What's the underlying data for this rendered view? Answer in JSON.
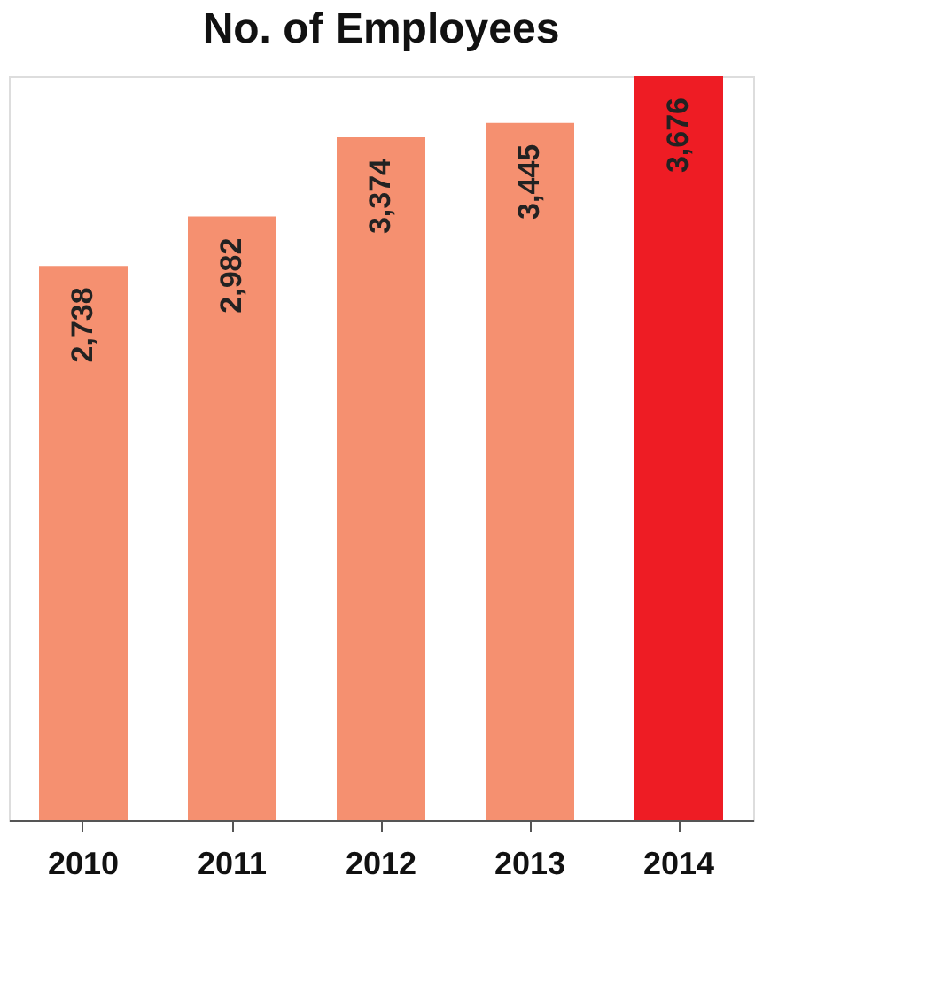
{
  "chart_data": {
    "type": "bar",
    "title": "No. of Employees",
    "categories": [
      "2010",
      "2011",
      "2012",
      "2013",
      "2014"
    ],
    "values": [
      2738,
      2982,
      3374,
      3445,
      3676
    ],
    "value_labels": [
      "2,738",
      "2,982",
      "3,374",
      "3,445",
      "3,676"
    ],
    "colors": [
      "#f59070",
      "#f59070",
      "#f59070",
      "#f59070",
      "#ee1c24"
    ],
    "grid": false
  }
}
